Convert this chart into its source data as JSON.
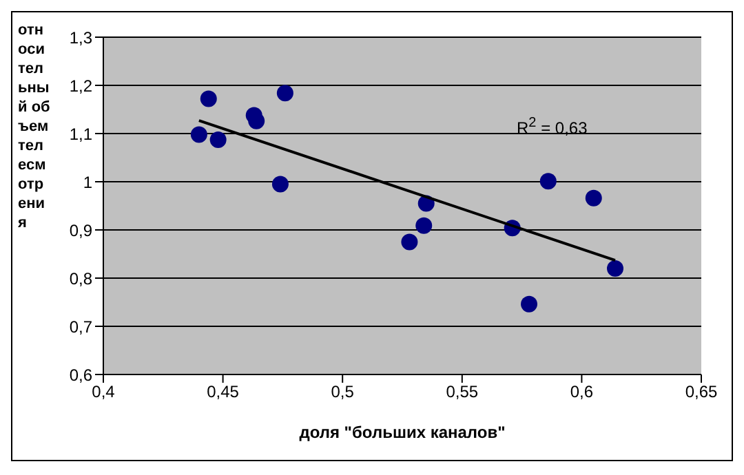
{
  "chart_data": {
    "type": "scatter",
    "xlabel": "доля \"больших каналов\"",
    "ylabel": "относительный объем телесмотрения",
    "annotations": [
      "R$^{2}$ = 0,63"
    ],
    "grid": "y",
    "legend": false,
    "marker": "circle",
    "xlim": [
      0.4,
      0.65
    ],
    "xticks": [
      {
        "value": 0.4,
        "label": "0,4"
      },
      {
        "value": 0.45,
        "label": "0,45"
      },
      {
        "value": 0.5,
        "label": "0,5"
      },
      {
        "value": 0.55,
        "label": "0,55"
      },
      {
        "value": 0.6,
        "label": "0,6"
      },
      {
        "value": 0.65,
        "label": "0,65"
      }
    ],
    "ylim": [
      0.6,
      1.3
    ],
    "yticks": [
      {
        "value": 0.6,
        "label": "0,6"
      },
      {
        "value": 0.7,
        "label": "0,7"
      },
      {
        "value": 0.8,
        "label": "0,8"
      },
      {
        "value": 0.9,
        "label": "0,9"
      },
      {
        "value": 1,
        "label": "1"
      },
      {
        "value": 1.1,
        "label": "1,1"
      },
      {
        "value": 1.2,
        "label": "1,2"
      },
      {
        "value": 1.3,
        "label": "1,3"
      }
    ],
    "series": [
      {
        "color": "#000080",
        "x": [
          0.44,
          0.444,
          0.448,
          0.463,
          0.464,
          0.476,
          0.474,
          0.535,
          0.534,
          0.528,
          0.571,
          0.586,
          0.578,
          0.605,
          0.614
        ],
        "values": [
          1.098,
          1.172,
          1.087,
          1.138,
          1.126,
          1.184,
          0.995,
          0.955,
          0.909,
          0.875,
          0.904,
          1.001,
          0.746,
          0.966,
          0.82
        ]
      },
      {
        "type": "line",
        "color": "#000000",
        "marker": "none",
        "x": [
          0.44,
          0.614
        ],
        "values": [
          1.127,
          0.837
        ]
      }
    ]
  }
}
